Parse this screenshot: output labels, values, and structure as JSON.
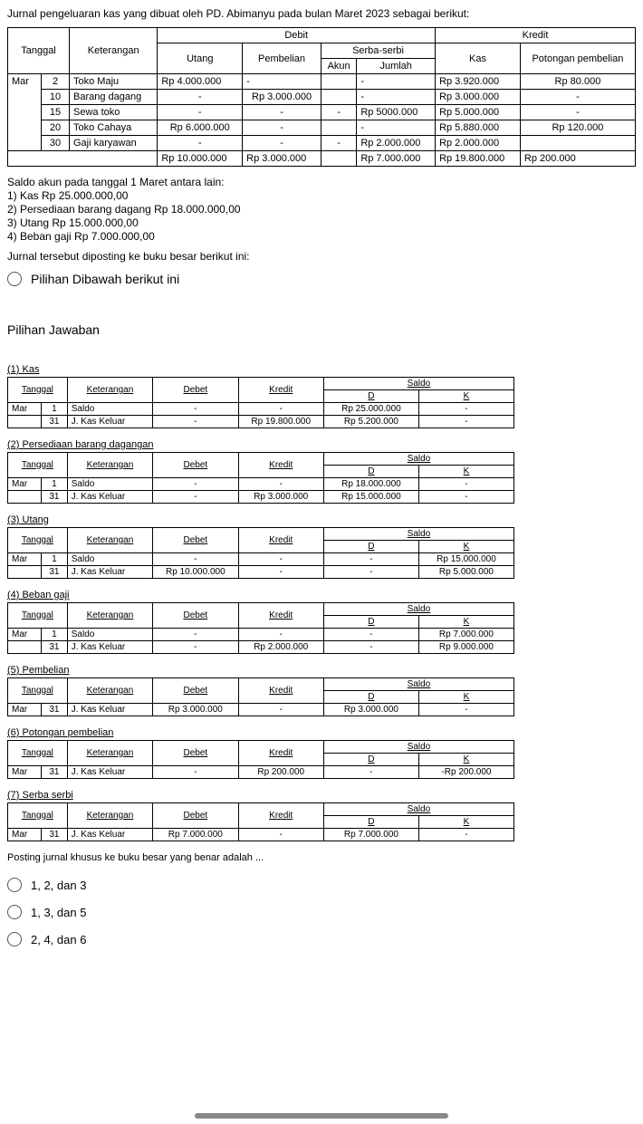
{
  "intro": "Jurnal pengeluaran kas yang dibuat oleh PD. Abimanyu pada bulan Maret 2023 sebagai berikut:",
  "main": {
    "headers": {
      "tanggal": "Tanggal",
      "keterangan": "Keterangan",
      "debit": "Debit",
      "kredit": "Kredit",
      "utang": "Utang",
      "pembelian": "Pembelian",
      "serba": "Serba-serbi",
      "akun": "Akun",
      "jumlah": "Jumlah",
      "kas": "Kas",
      "potongan": "Potongan pembelian"
    },
    "month": "Mar",
    "rows": [
      {
        "d": "2",
        "ket": "Toko Maju",
        "ut": "Rp  4.000.000",
        "pem": "-",
        "ak": "",
        "jm": "-",
        "kas": "Rp 3.920.000",
        "pot": "Rp  80.000"
      },
      {
        "d": "10",
        "ket": "Barang dagang",
        "ut": "-",
        "pem": "Rp 3.000.000",
        "ak": "",
        "jm": "-",
        "kas": "Rp 3.000.000",
        "pot": "-"
      },
      {
        "d": "15",
        "ket": "Sewa toko",
        "ut": "-",
        "pem": "-",
        "ak": "-",
        "jm": "Rp 5000.000",
        "kas": "Rp 5.000.000",
        "pot": "-"
      },
      {
        "d": "20",
        "ket": "Toko Cahaya",
        "ut": "Rp  6.000.000",
        "pem": "-",
        "ak": "",
        "jm": "-",
        "kas": "Rp 5.880.000",
        "pot": "Rp 120.000"
      },
      {
        "d": "30",
        "ket": "Gaji karyawan",
        "ut": "-",
        "pem": "-",
        "ak": "-",
        "jm": "Rp 2.000.000",
        "kas": "Rp 2.000.000",
        "pot": ""
      }
    ],
    "totals": {
      "ut": "Rp 10.000.000",
      "pem": "Rp 3.000.000",
      "ak": "",
      "jm": "Rp 7.000.000",
      "kas": "Rp 19.800.000",
      "pot": "Rp 200.000"
    }
  },
  "notes": {
    "head": "Saldo akun pada tanggal 1 Maret antara lain:",
    "n1": "1)   Kas Rp 25.000.000,00",
    "n2": "2)   Persediaan barang dagang Rp 18.000.000,00",
    "n3": "3)   Utang Rp 15.000.000,00",
    "n4": "4)   Beban gaji Rp 7.000.000,00",
    "post": "Jurnal tersebut diposting ke buku besar berikut ini:"
  },
  "top_option": "Pilihan Dibawah berikut ini",
  "section_label": "Pilihan Jawaban",
  "lh": {
    "tanggal": "Tanggal",
    "ket": "Keterangan",
    "deb": "Debet",
    "kre": "Kredit",
    "sal": "Saldo",
    "d": "D",
    "k": "K"
  },
  "ledgers": [
    {
      "title": "(1) Kas",
      "rows": [
        {
          "m": "Mar",
          "d": "1",
          "ket": "Saldo",
          "deb": "-",
          "kre": "-",
          "sd": "Rp 25.000.000",
          "sk": "-"
        },
        {
          "m": "",
          "d": "31",
          "ket": "J. Kas Keluar",
          "deb": "-",
          "kre": "Rp 19.800.000",
          "sd": "Rp  5.200.000",
          "sk": "-"
        }
      ]
    },
    {
      "title": "(2) Persediaan barang dagangan",
      "rows": [
        {
          "m": "Mar",
          "d": "1",
          "ket": "Saldo",
          "deb": "-",
          "kre": "-",
          "sd": "Rp 18.000.000",
          "sk": "-"
        },
        {
          "m": "",
          "d": "31",
          "ket": "J. Kas Keluar",
          "deb": "-",
          "kre": "Rp  3.000.000",
          "sd": "Rp 15.000.000",
          "sk": "-"
        }
      ]
    },
    {
      "title": "(3) Utang",
      "rows": [
        {
          "m": "Mar",
          "d": "1",
          "ket": "Saldo",
          "deb": "-",
          "kre": "-",
          "sd": "-",
          "sk": "Rp 15.000.000"
        },
        {
          "m": "",
          "d": "31",
          "ket": "J. Kas Keluar",
          "deb": "Rp 10.000.000",
          "kre": "-",
          "sd": "-",
          "sk": "Rp  5.000.000"
        }
      ]
    },
    {
      "title": "(4) Beban gaji",
      "rows": [
        {
          "m": "Mar",
          "d": "1",
          "ket": "Saldo",
          "deb": "-",
          "kre": "-",
          "sd": "-",
          "sk": "Rp  7.000.000"
        },
        {
          "m": "",
          "d": "31",
          "ket": "J. Kas Keluar",
          "deb": "-",
          "kre": "Rp  2.000.000",
          "sd": "-",
          "sk": "Rp  9.000.000"
        }
      ]
    },
    {
      "title": "(5) Pembelian",
      "rows": [
        {
          "m": "Mar",
          "d": "31",
          "ket": "J. Kas Keluar",
          "deb": "Rp  3.000.000",
          "kre": "-",
          "sd": "Rp  3.000.000",
          "sk": "-"
        }
      ]
    },
    {
      "title": "(6) Potongan pembelian",
      "rows": [
        {
          "m": "Mar",
          "d": "31",
          "ket": "J. Kas Keluar",
          "deb": "-",
          "kre": "Rp    200.000",
          "sd": "-",
          "sk": "-Rp    200.000"
        }
      ]
    },
    {
      "title": "(7) Serba serbi",
      "rows": [
        {
          "m": "Mar",
          "d": "31",
          "ket": "J. Kas Keluar",
          "deb": "Rp  7.000.000",
          "kre": "-",
          "sd": "Rp  7.000.000",
          "sk": "-"
        }
      ]
    }
  ],
  "final_q": "Posting jurnal khusus ke buku besar yang benar adalah ...",
  "answers": [
    "1, 2, dan 3",
    "1, 3, dan 5",
    "2, 4, dan 6"
  ]
}
